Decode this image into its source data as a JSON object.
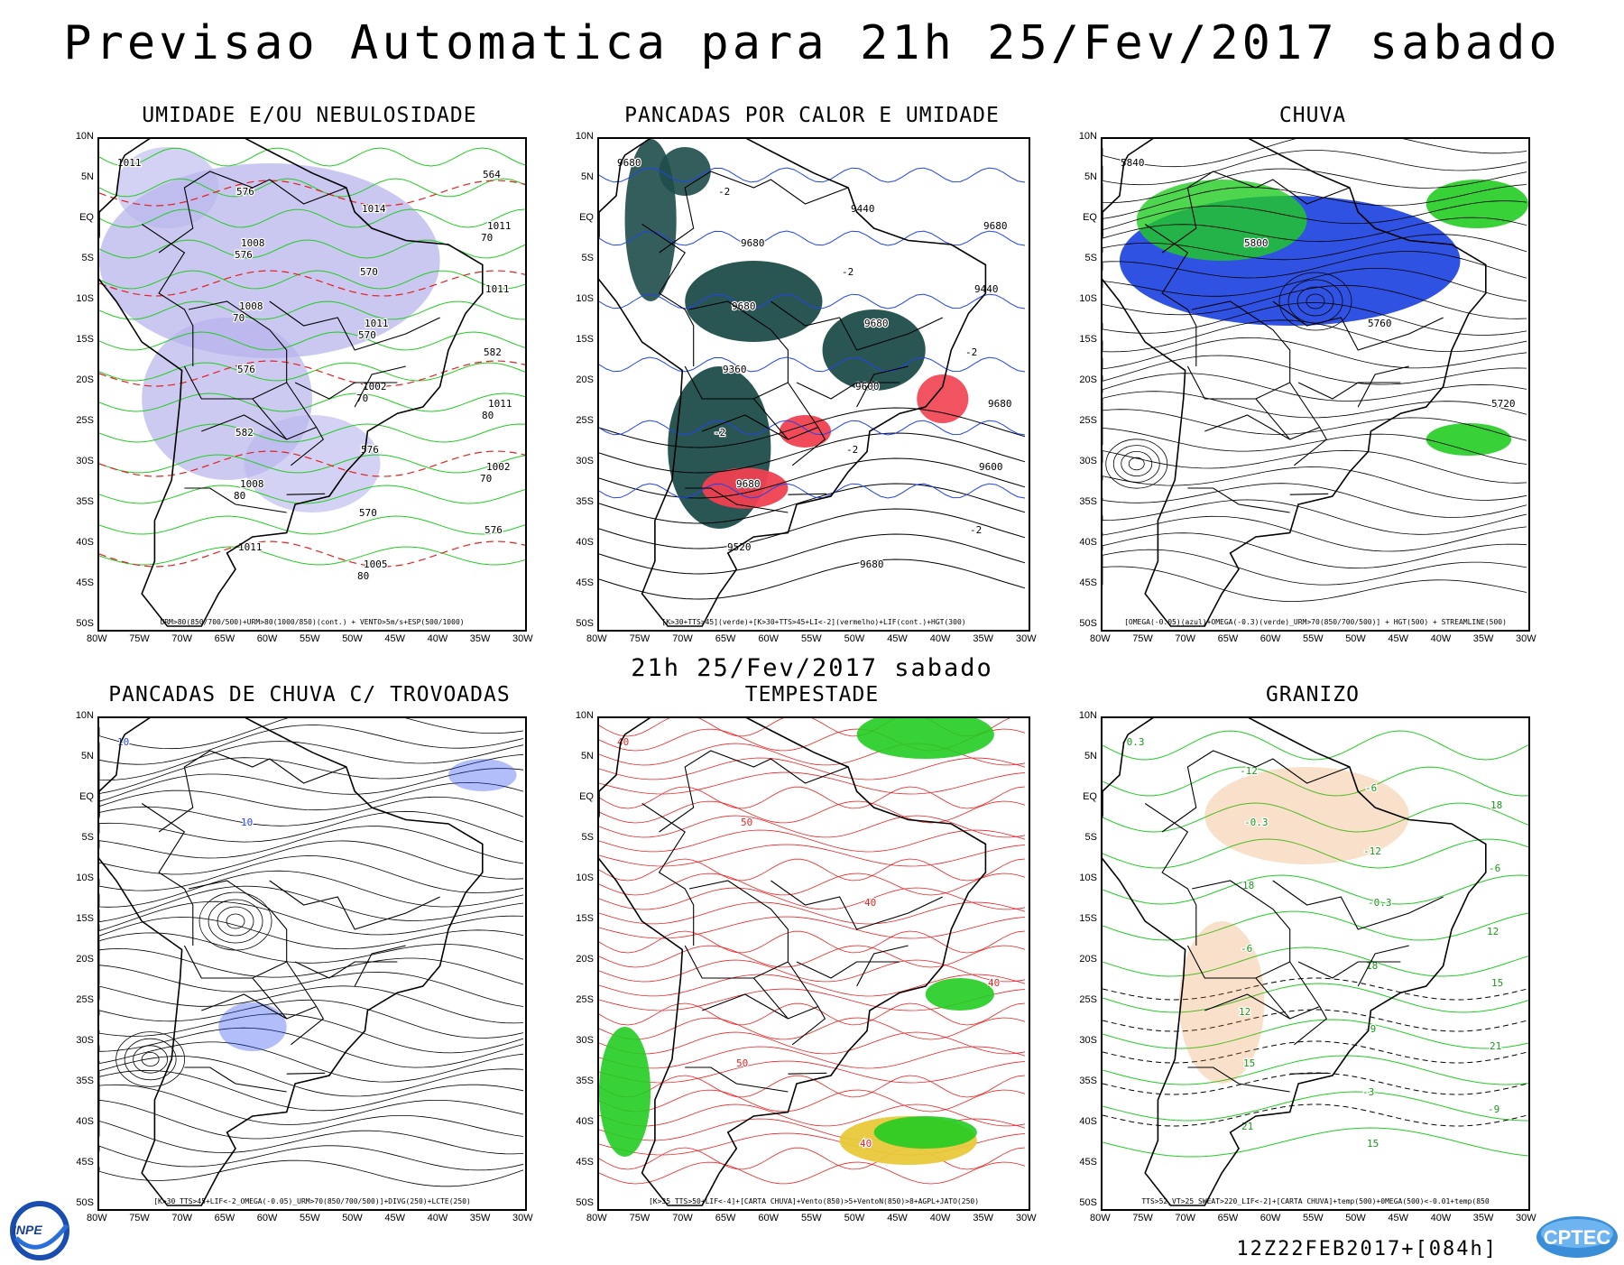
{
  "header": {
    "title": "Previsao Automatica  para 21h 25/Fev/2017 sabado",
    "subtitle": "21h 25/Fev/2017 sabado"
  },
  "axes": {
    "lat_labels": [
      "10N",
      "5N",
      "EQ",
      "5S",
      "10S",
      "15S",
      "20S",
      "25S",
      "30S",
      "35S",
      "40S",
      "45S",
      "50S"
    ],
    "lon_labels": [
      "80W",
      "75W",
      "70W",
      "65W",
      "60W",
      "55W",
      "50W",
      "45W",
      "40W",
      "35W",
      "30W"
    ]
  },
  "panels": [
    {
      "title": "UMIDADE E/OU NEBULOSIDADE",
      "caption": "URM>80(850/700/500)+URM>80(1000/850)(cont.) + VENTO>5m/s+ESP(500/1000)",
      "labels": [
        "1011",
        "1008",
        "1011",
        "1011",
        "1008",
        "1005",
        "1011",
        "1008",
        "1002",
        "1002",
        "1011",
        "1014",
        "1011",
        "576",
        "576",
        "576",
        "576",
        "570",
        "582",
        "582",
        "570",
        "564",
        "576",
        "570",
        "80",
        "80",
        "80",
        "70",
        "70",
        "70",
        "70"
      ]
    },
    {
      "title": "PANCADAS POR CALOR E UMIDADE",
      "caption": "[K>30+TTS>45](verde)+[K>30+TTS>45+LI<-2](vermelho)+LIF(cont.)+HGT(300)",
      "labels": [
        "9680",
        "9680",
        "9680",
        "9680",
        "9680",
        "9680",
        "9680",
        "9680",
        "9600",
        "9600",
        "9520",
        "9440",
        "9440",
        "9360",
        "-2",
        "-2",
        "-2",
        "-2",
        "-2",
        "-2"
      ]
    },
    {
      "title": "CHUVA",
      "caption": "[OMEGA(-0.05)(azul)+OMEGA(-0.3)(verde)_URM>70(850/700/500)] + HGT(500) + STREAMLINE(500)",
      "labels": [
        "5840",
        "5800",
        "5760",
        "5720"
      ]
    },
    {
      "title": "PANCADAS DE CHUVA C/ TROVOADAS",
      "caption": "[K>30_TTS>45+LIF<-2_OMEGA(-0.05)_URM>70(850/700/500)]+DIVG(250)+LCTE(250)",
      "labels": [
        "10",
        "10"
      ]
    },
    {
      "title": "TEMPESTADE",
      "caption": "[K>35_TTS>50+LIF<-4]+[CARTA CHUVA]+Vento(850)>5+VentoN(850)>8+AGPL+JATO(250)",
      "labels": [
        "40",
        "50",
        "40",
        "40",
        "50",
        "40"
      ]
    },
    {
      "title": "GRANIZO",
      "caption": "TTS>52_VT>25_SWEAT>220_LIF<-2]+[CARTA CHUVA]+temp(500)+0MEGA(500)<-0.01+temp(850",
      "labels": [
        "-0.3",
        "-0.3",
        "-0.3",
        "15",
        "15",
        "15",
        "18",
        "18",
        "18",
        "21",
        "21",
        "-6",
        "-6",
        "-6",
        "-9",
        "-9",
        "-12",
        "-12",
        "12",
        "12",
        "-3"
      ]
    }
  ],
  "footer": {
    "run": "12Z22FEB2017+[084h]",
    "logo_left": "INPE",
    "logo_right": "CPTEC"
  },
  "colors": {
    "cloud_fill": "#b8b4ec",
    "rh_contour": "#22cc22",
    "pressure_red": "#e62020",
    "teal_fill": "#1e4d4a",
    "red_fill": "#f04050",
    "omega_blue": "#1a3fe0",
    "omega_green": "#22cc22",
    "storm_red": "#ee2222",
    "jet_yellow": "#e8c83a",
    "hail_orange": "#e8832a"
  }
}
